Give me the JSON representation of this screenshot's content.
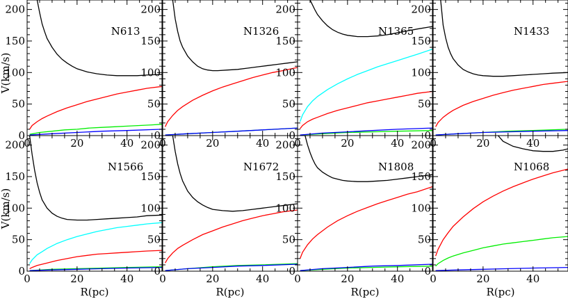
{
  "figure": {
    "ylabel": "V(km/s)",
    "xlabel": "R(pc)"
  },
  "chart_data": [
    {
      "type": "line",
      "name": "N613",
      "xlim": [
        0,
        54
      ],
      "ylim": [
        0,
        215
      ],
      "xticks": [
        0,
        20,
        40
      ],
      "yticks": [
        0,
        50,
        100,
        150,
        200
      ],
      "series": [
        {
          "color": "#000000",
          "x": [
            4,
            5,
            6,
            7,
            8,
            10,
            12,
            14,
            16,
            18,
            20,
            24,
            28,
            32,
            36,
            40,
            44,
            48,
            54
          ],
          "y": [
            215,
            195,
            177,
            165,
            154,
            140,
            129,
            121,
            115,
            110,
            106,
            101,
            98,
            96,
            95,
            95,
            95,
            96,
            97
          ]
        },
        {
          "color": "#ff0000",
          "x": [
            1,
            2,
            4,
            6,
            8,
            12,
            16,
            20,
            24,
            28,
            32,
            36,
            40,
            44,
            48,
            54
          ],
          "y": [
            10,
            16,
            22,
            27,
            31,
            38,
            44,
            49,
            54,
            58,
            62,
            66,
            69,
            72,
            75,
            78
          ]
        },
        {
          "color": "#00ee00",
          "x": [
            1,
            5,
            10,
            15,
            20,
            25,
            30,
            35,
            40,
            45,
            50,
            54
          ],
          "y": [
            2,
            5,
            7,
            9,
            10,
            12,
            13,
            14,
            15,
            16,
            17,
            18
          ]
        },
        {
          "color": "#0000ff",
          "x": [
            1,
            10,
            20,
            30,
            40,
            54
          ],
          "y": [
            1,
            3,
            5,
            7,
            8,
            10
          ]
        }
      ]
    },
    {
      "type": "line",
      "name": "N1326",
      "xlim": [
        0,
        54
      ],
      "ylim": [
        0,
        215
      ],
      "xticks": [
        0,
        20,
        40
      ],
      "yticks": [
        0,
        50,
        100,
        150,
        200
      ],
      "series": [
        {
          "color": "#000000",
          "x": [
            4,
            5,
            6,
            7,
            8,
            10,
            12,
            14,
            16,
            18,
            20,
            22,
            26,
            30,
            34,
            38,
            42,
            46,
            50,
            54
          ],
          "y": [
            215,
            185,
            165,
            150,
            140,
            126,
            117,
            110,
            106,
            104,
            103,
            103,
            104,
            105,
            107,
            109,
            111,
            113,
            115,
            117
          ]
        },
        {
          "color": "#ff0000",
          "x": [
            1,
            2,
            4,
            6,
            8,
            12,
            16,
            20,
            24,
            28,
            32,
            36,
            40,
            44,
            48,
            54
          ],
          "y": [
            14,
            22,
            32,
            40,
            46,
            56,
            64,
            71,
            77,
            82,
            87,
            92,
            96,
            100,
            103,
            108
          ]
        },
        {
          "color": "#00ee00",
          "x": [
            1,
            10,
            20,
            30,
            40,
            54
          ],
          "y": [
            1,
            3,
            5,
            7,
            9,
            12
          ]
        },
        {
          "color": "#0000ff",
          "x": [
            1,
            10,
            20,
            30,
            40,
            54
          ],
          "y": [
            1,
            3,
            5,
            7,
            9,
            12
          ]
        }
      ]
    },
    {
      "type": "line",
      "name": "N1365",
      "xlim": [
        0,
        54
      ],
      "ylim": [
        0,
        215
      ],
      "xticks": [
        0,
        20,
        40
      ],
      "yticks": [
        0,
        50,
        100,
        150,
        200
      ],
      "series": [
        {
          "color": "#000000",
          "x": [
            5,
            6,
            7,
            8,
            10,
            12,
            14,
            16,
            18,
            20,
            24,
            28,
            32,
            36,
            40,
            44,
            48,
            54
          ],
          "y": [
            215,
            207,
            199,
            192,
            182,
            174,
            168,
            164,
            161,
            159,
            157,
            157,
            158,
            160,
            163,
            166,
            169,
            173
          ]
        },
        {
          "color": "#00ffff",
          "x": [
            1,
            2,
            4,
            6,
            8,
            12,
            16,
            20,
            24,
            28,
            32,
            36,
            40,
            44,
            48,
            54
          ],
          "y": [
            22,
            33,
            46,
            55,
            62,
            73,
            82,
            90,
            97,
            103,
            109,
            114,
            119,
            124,
            129,
            137
          ]
        },
        {
          "color": "#ff0000",
          "x": [
            1,
            2,
            4,
            6,
            8,
            12,
            16,
            20,
            24,
            28,
            32,
            36,
            40,
            44,
            48,
            54
          ],
          "y": [
            11,
            16,
            22,
            26,
            29,
            35,
            40,
            44,
            48,
            52,
            55,
            58,
            61,
            64,
            67,
            70
          ]
        },
        {
          "color": "#00ee00",
          "x": [
            1,
            10,
            20,
            30,
            40,
            54
          ],
          "y": [
            1,
            3,
            5,
            6,
            7,
            8
          ]
        },
        {
          "color": "#0000ff",
          "x": [
            1,
            10,
            20,
            30,
            40,
            54
          ],
          "y": [
            1,
            4,
            6,
            8,
            10,
            12
          ]
        }
      ]
    },
    {
      "type": "line",
      "name": "N1433",
      "xlim": [
        0,
        54
      ],
      "ylim": [
        0,
        215
      ],
      "xticks": [
        0,
        20,
        40
      ],
      "yticks": [
        0,
        50,
        100,
        150,
        200
      ],
      "series": [
        {
          "color": "#000000",
          "x": [
            3,
            4,
            5,
            6,
            7,
            8,
            10,
            12,
            14,
            16,
            18,
            20,
            24,
            28,
            32,
            36,
            40,
            44,
            48,
            54
          ],
          "y": [
            215,
            175,
            155,
            140,
            130,
            122,
            112,
            105,
            101,
            98,
            96,
            95,
            94,
            94,
            95,
            96,
            97,
            98,
            99,
            100
          ]
        },
        {
          "color": "#ff0000",
          "x": [
            1,
            2,
            4,
            6,
            8,
            12,
            16,
            20,
            24,
            28,
            32,
            36,
            40,
            44,
            48,
            54
          ],
          "y": [
            14,
            21,
            29,
            35,
            40,
            48,
            54,
            59,
            64,
            68,
            72,
            75,
            78,
            81,
            83,
            86
          ]
        },
        {
          "color": "#00ee00",
          "x": [
            1,
            10,
            20,
            30,
            40,
            54
          ],
          "y": [
            1,
            3,
            5,
            7,
            8,
            10
          ]
        },
        {
          "color": "#0000ff",
          "x": [
            1,
            10,
            20,
            30,
            40,
            54
          ],
          "y": [
            1,
            3,
            5,
            6,
            7,
            8
          ]
        }
      ]
    },
    {
      "type": "line",
      "name": "N1566",
      "xlim": [
        0,
        54
      ],
      "ylim": [
        0,
        215
      ],
      "xticks": [
        0,
        20,
        40
      ],
      "yticks": [
        0,
        50,
        100,
        150,
        200
      ],
      "series": [
        {
          "color": "#000000",
          "x": [
            1,
            2,
            3,
            4,
            5,
            6,
            8,
            10,
            12,
            14,
            16,
            20,
            24,
            28,
            32,
            36,
            40,
            44,
            48,
            54
          ],
          "y": [
            215,
            185,
            160,
            140,
            125,
            113,
            100,
            92,
            87,
            84,
            82,
            81,
            81,
            82,
            83,
            84,
            85,
            86,
            88,
            89
          ]
        },
        {
          "color": "#00ffff",
          "x": [
            1,
            2,
            4,
            6,
            8,
            12,
            16,
            20,
            24,
            28,
            32,
            36,
            40,
            44,
            48,
            54
          ],
          "y": [
            12,
            18,
            26,
            31,
            36,
            44,
            50,
            55,
            59,
            63,
            66,
            69,
            71,
            73,
            75,
            77
          ]
        },
        {
          "color": "#ff0000",
          "x": [
            1,
            2,
            4,
            6,
            8,
            12,
            16,
            20,
            24,
            28,
            32,
            36,
            40,
            44,
            48,
            54
          ],
          "y": [
            4,
            6,
            9,
            11,
            13,
            17,
            20,
            23,
            25,
            27,
            28,
            29,
            30,
            31,
            32,
            33
          ]
        },
        {
          "color": "#00ee00",
          "x": [
            1,
            10,
            20,
            30,
            40,
            54
          ],
          "y": [
            1,
            3,
            4,
            5,
            6,
            7
          ]
        },
        {
          "color": "#0000ff",
          "x": [
            1,
            10,
            20,
            30,
            40,
            54
          ],
          "y": [
            1,
            2,
            3,
            4,
            5,
            6
          ]
        }
      ]
    },
    {
      "type": "line",
      "name": "N1672",
      "xlim": [
        0,
        54
      ],
      "ylim": [
        0,
        215
      ],
      "xticks": [
        0,
        20,
        40
      ],
      "yticks": [
        0,
        50,
        100,
        150,
        200
      ],
      "series": [
        {
          "color": "#000000",
          "x": [
            4,
            5,
            6,
            7,
            8,
            10,
            12,
            14,
            16,
            18,
            20,
            24,
            28,
            32,
            36,
            40,
            44,
            48,
            54
          ],
          "y": [
            215,
            190,
            170,
            155,
            143,
            127,
            117,
            110,
            105,
            101,
            98,
            96,
            95,
            96,
            98,
            100,
            102,
            104,
            107
          ]
        },
        {
          "color": "#ff0000",
          "x": [
            1,
            2,
            4,
            6,
            8,
            12,
            16,
            20,
            24,
            28,
            32,
            36,
            40,
            44,
            48,
            54
          ],
          "y": [
            13,
            20,
            29,
            36,
            41,
            50,
            58,
            64,
            70,
            75,
            80,
            84,
            88,
            91,
            94,
            97
          ]
        },
        {
          "color": "#00ee00",
          "x": [
            1,
            10,
            20,
            30,
            40,
            54
          ],
          "y": [
            1,
            4,
            7,
            9,
            10,
            12
          ]
        },
        {
          "color": "#0000ff",
          "x": [
            1,
            10,
            20,
            30,
            40,
            54
          ],
          "y": [
            1,
            4,
            6,
            8,
            9,
            11
          ]
        }
      ]
    },
    {
      "type": "line",
      "name": "N1808",
      "xlim": [
        0,
        54
      ],
      "ylim": [
        0,
        215
      ],
      "xticks": [
        0,
        20,
        40
      ],
      "yticks": [
        0,
        50,
        100,
        150,
        200
      ],
      "series": [
        {
          "color": "#000000",
          "x": [
            3,
            4,
            5,
            6,
            7,
            8,
            10,
            12,
            14,
            16,
            18,
            20,
            24,
            28,
            32,
            36,
            40,
            44,
            48,
            54
          ],
          "y": [
            215,
            200,
            188,
            178,
            170,
            164,
            157,
            152,
            148,
            146,
            144,
            143,
            142,
            142,
            143,
            144,
            146,
            148,
            150,
            153
          ]
        },
        {
          "color": "#ff0000",
          "x": [
            1,
            2,
            4,
            6,
            8,
            12,
            16,
            20,
            24,
            28,
            32,
            36,
            40,
            44,
            48,
            54
          ],
          "y": [
            20,
            30,
            42,
            51,
            58,
            70,
            80,
            88,
            95,
            101,
            107,
            112,
            117,
            122,
            126,
            134
          ]
        },
        {
          "color": "#00ee00",
          "x": [
            1,
            10,
            20,
            30,
            40,
            54
          ],
          "y": [
            1,
            3,
            5,
            6,
            7,
            8
          ]
        },
        {
          "color": "#0000ff",
          "x": [
            1,
            10,
            20,
            30,
            40,
            54
          ],
          "y": [
            1,
            4,
            6,
            8,
            9,
            11
          ]
        }
      ]
    },
    {
      "type": "line",
      "name": "N1068",
      "xlim": [
        0,
        54
      ],
      "ylim": [
        0,
        215
      ],
      "xticks": [
        0,
        20,
        40
      ],
      "yticks": [
        0,
        50,
        100,
        150,
        200
      ],
      "series": [
        {
          "color": "#000000",
          "x": [
            26,
            28,
            32,
            36,
            40,
            44,
            48,
            52,
            54
          ],
          "y": [
            215,
            206,
            198,
            194,
            191,
            190,
            190,
            192,
            194
          ]
        },
        {
          "color": "#ff0000",
          "x": [
            1,
            2,
            4,
            6,
            8,
            12,
            16,
            20,
            24,
            28,
            32,
            36,
            40,
            44,
            48,
            54
          ],
          "y": [
            24,
            35,
            50,
            61,
            71,
            86,
            99,
            110,
            119,
            127,
            134,
            140,
            146,
            151,
            156,
            162
          ]
        },
        {
          "color": "#00ee00",
          "x": [
            1,
            2,
            4,
            6,
            8,
            12,
            16,
            20,
            24,
            28,
            32,
            36,
            40,
            44,
            48,
            54
          ],
          "y": [
            8,
            12,
            17,
            21,
            24,
            29,
            33,
            37,
            40,
            43,
            45,
            47,
            49,
            51,
            53,
            55
          ]
        },
        {
          "color": "#0000ff",
          "x": [
            1,
            10,
            20,
            30,
            40,
            54
          ],
          "y": [
            1,
            2,
            3,
            4,
            5,
            6
          ]
        }
      ]
    }
  ]
}
